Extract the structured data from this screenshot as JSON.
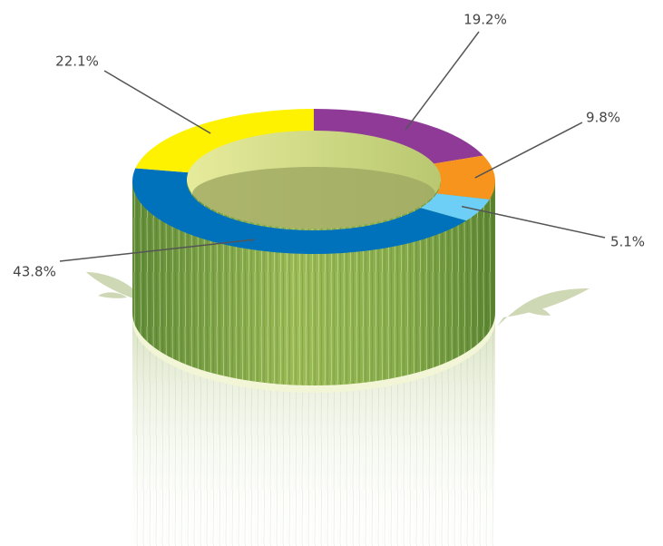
{
  "chart_data": {
    "type": "donut",
    "values": [
      19.2,
      9.8,
      5.1,
      43.8,
      22.1
    ],
    "value_labels": [
      "19.2%",
      "9.8%",
      "5.1%",
      "43.8%",
      "22.1%"
    ],
    "colors": [
      "#8e3a96",
      "#f7941d",
      "#6dcff6",
      "#0072bc",
      "#fff200"
    ]
  }
}
